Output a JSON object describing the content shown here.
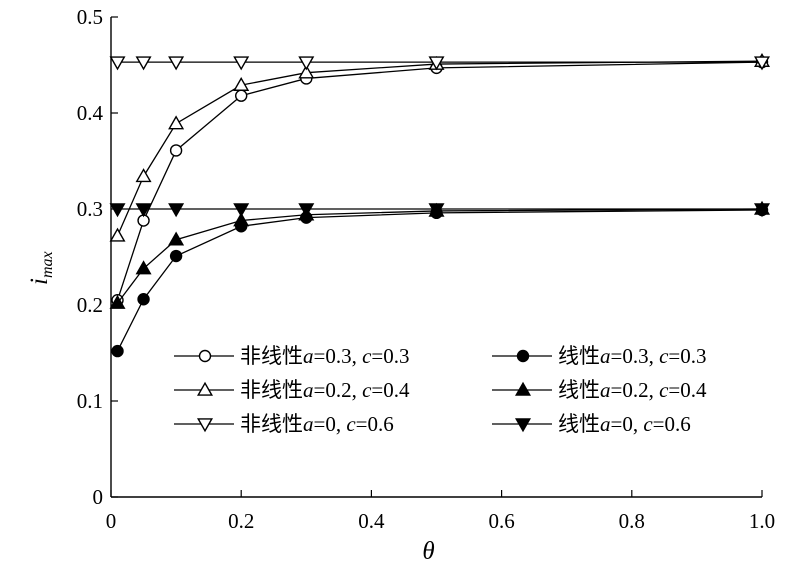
{
  "chart_data": {
    "type": "line",
    "xlabel": "θ",
    "ylabel": {
      "main": "i",
      "sub": "max"
    },
    "xlim": [
      0,
      1.0
    ],
    "ylim": [
      0,
      0.5
    ],
    "xticks": [
      0,
      0.2,
      0.4,
      0.6,
      0.8,
      1.0
    ],
    "xtick_labels": [
      "0",
      "0.2",
      "0.4",
      "0.6",
      "0.8",
      "1.0"
    ],
    "yticks": [
      0,
      0.1,
      0.2,
      0.3,
      0.4,
      0.5
    ],
    "ytick_labels": [
      "0",
      "0.1",
      "0.2",
      "0.3",
      "0.4",
      "0.5"
    ],
    "grid": false,
    "legend_position": "bottom-right",
    "series": [
      {
        "name": "非线性a=0.3, c=0.3",
        "legend_parts": [
          [
            "非线性",
            ""
          ],
          [
            "a",
            "it"
          ],
          [
            "=0.3, ",
            ""
          ],
          [
            "c",
            "it"
          ],
          [
            "=0.3",
            ""
          ]
        ],
        "marker": "circle-open",
        "x": [
          0.01,
          0.05,
          0.1,
          0.2,
          0.3,
          0.5,
          1.0
        ],
        "y": [
          0.205,
          0.288,
          0.361,
          0.418,
          0.436,
          0.447,
          0.453
        ]
      },
      {
        "name": "线性a=0.3, c=0.3",
        "legend_parts": [
          [
            "线性",
            ""
          ],
          [
            "a",
            "it"
          ],
          [
            "=0.3, ",
            ""
          ],
          [
            "c",
            "it"
          ],
          [
            "=0.3",
            ""
          ]
        ],
        "marker": "circle-filled",
        "x": [
          0.01,
          0.05,
          0.1,
          0.2,
          0.3,
          0.5,
          1.0
        ],
        "y": [
          0.152,
          0.206,
          0.251,
          0.282,
          0.291,
          0.296,
          0.299
        ]
      },
      {
        "name": "非线性a=0.2, c=0.4",
        "legend_parts": [
          [
            "非线性",
            ""
          ],
          [
            "a",
            "it"
          ],
          [
            "=0.2, ",
            ""
          ],
          [
            "c",
            "it"
          ],
          [
            "=0.4",
            ""
          ]
        ],
        "marker": "triangle-up-open",
        "x": [
          0.01,
          0.05,
          0.1,
          0.2,
          0.3,
          0.5,
          1.0
        ],
        "y": [
          0.272,
          0.334,
          0.389,
          0.429,
          0.442,
          0.451,
          0.454
        ]
      },
      {
        "name": "线性a=0.2, c=0.4",
        "legend_parts": [
          [
            "线性",
            ""
          ],
          [
            "a",
            "it"
          ],
          [
            "=0.2, ",
            ""
          ],
          [
            "c",
            "it"
          ],
          [
            "=0.4",
            ""
          ]
        ],
        "marker": "triangle-up-filled",
        "x": [
          0.01,
          0.05,
          0.1,
          0.2,
          0.3,
          0.5,
          1.0
        ],
        "y": [
          0.202,
          0.238,
          0.268,
          0.288,
          0.294,
          0.298,
          0.3
        ]
      },
      {
        "name": "非线性a=0, c=0.6",
        "legend_parts": [
          [
            "非线性",
            ""
          ],
          [
            "a",
            "it"
          ],
          [
            "=0, ",
            ""
          ],
          [
            "c",
            "it"
          ],
          [
            "=0.6",
            ""
          ]
        ],
        "marker": "triangle-down-open",
        "x": [
          0.01,
          0.05,
          0.1,
          0.2,
          0.3,
          0.5,
          1.0
        ],
        "y": [
          0.453,
          0.453,
          0.453,
          0.453,
          0.453,
          0.453,
          0.453
        ]
      },
      {
        "name": "线性a=0, c=0.6",
        "legend_parts": [
          [
            "线性",
            ""
          ],
          [
            "a",
            "it"
          ],
          [
            "=0, ",
            ""
          ],
          [
            "c",
            "it"
          ],
          [
            "=0.6",
            ""
          ]
        ],
        "marker": "triangle-down-filled",
        "x": [
          0.01,
          0.05,
          0.1,
          0.2,
          0.3,
          0.5,
          1.0
        ],
        "y": [
          0.3,
          0.3,
          0.3,
          0.3,
          0.3,
          0.3,
          0.3
        ]
      }
    ]
  }
}
